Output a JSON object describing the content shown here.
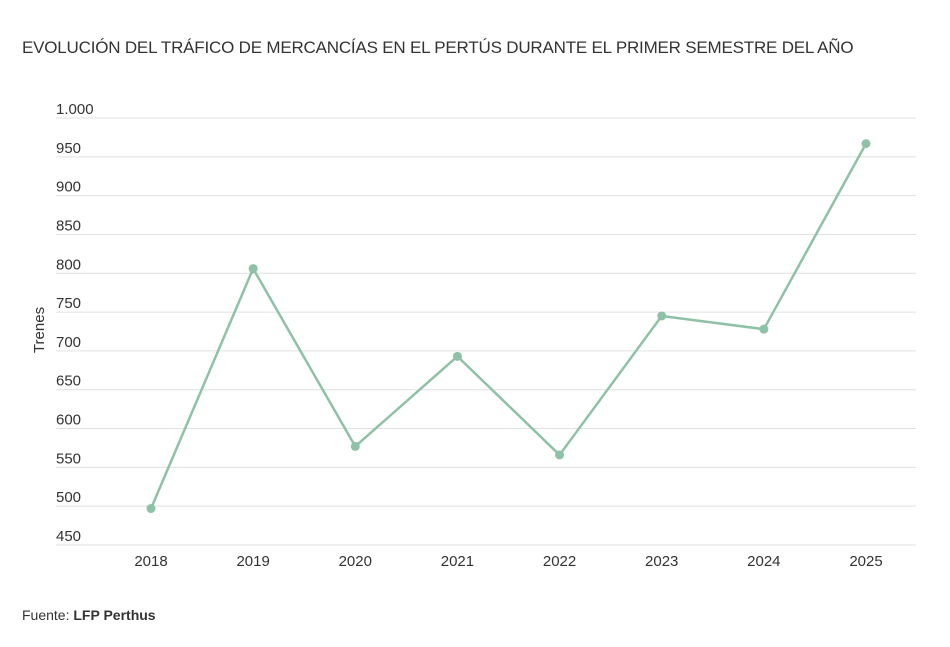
{
  "chart_data": {
    "type": "line",
    "title": "EVOLUCIÓN DEL TRÁFICO DE MERCANCÍAS EN EL PERTÚS DURANTE EL PRIMER SEMESTRE DEL AÑO",
    "xlabel": "",
    "ylabel": "Trenes",
    "categories": [
      "2018",
      "2019",
      "2020",
      "2021",
      "2022",
      "2023",
      "2024",
      "2025"
    ],
    "series": [
      {
        "name": "",
        "values": [
          497,
          806,
          577,
          693,
          566,
          745,
          728,
          967
        ]
      }
    ],
    "ylim": [
      450,
      1000
    ],
    "yticks": [
      1000,
      950,
      900,
      850,
      800,
      750,
      700,
      650,
      600,
      550,
      500,
      450
    ],
    "ytick_labels": [
      "1.000",
      "950",
      "900",
      "850",
      "800",
      "750",
      "700",
      "650",
      "600",
      "550",
      "500",
      "450"
    ],
    "grid": true,
    "line_color": "#8fc1a6",
    "grid_color": "#e0e0e0"
  },
  "footer": {
    "source_label": "Fuente:",
    "source_name": "LFP Perthus"
  }
}
